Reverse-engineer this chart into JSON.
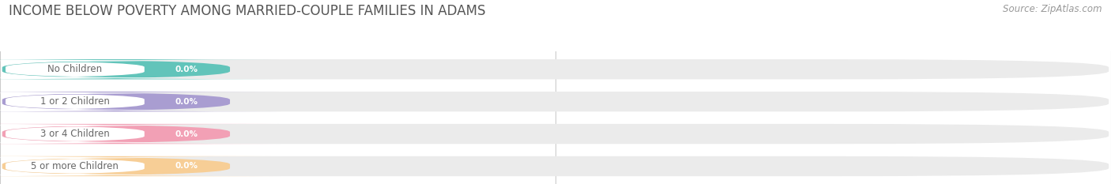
{
  "title": "INCOME BELOW POVERTY AMONG MARRIED-COUPLE FAMILIES IN ADAMS",
  "source": "Source: ZipAtlas.com",
  "categories": [
    "No Children",
    "1 or 2 Children",
    "3 or 4 Children",
    "5 or more Children"
  ],
  "values": [
    0.0,
    0.0,
    0.0,
    0.0
  ],
  "bar_colors": [
    "#62C4BA",
    "#A99DD1",
    "#F2A0B5",
    "#F7CE96"
  ],
  "bar_bg_color": "#EBEBEB",
  "label_bg_color": "#FFFFFF",
  "label_text_color": "#666666",
  "value_text_color": "#FFFFFF",
  "title_color": "#555555",
  "source_color": "#999999",
  "background_color": "#FFFFFF",
  "title_fontsize": 12,
  "label_fontsize": 8.5,
  "value_fontsize": 7.5,
  "source_fontsize": 8.5,
  "tick_fontsize": 8.5,
  "tick_color": "#999999"
}
